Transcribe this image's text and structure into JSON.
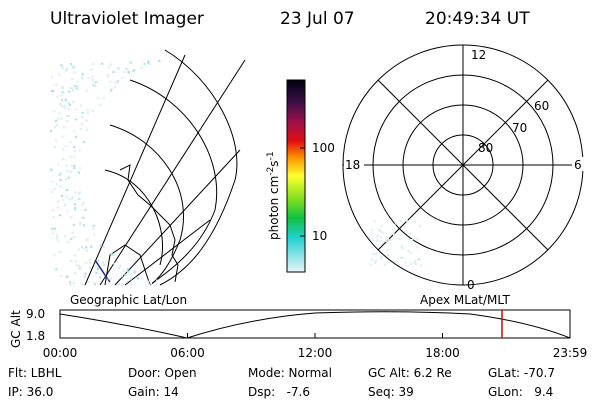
{
  "header": {
    "title": "Ultraviolet Imager",
    "date": "23 Jul 07",
    "time": "20:49:34 UT"
  },
  "colorbar": {
    "unit": [
      "photon cm",
      "-2",
      "s",
      "-1"
    ],
    "ticks": [
      "100",
      "10"
    ]
  },
  "polar": {
    "mlt": [
      "12",
      "6",
      "18",
      "0"
    ],
    "mlat": [
      "80",
      "70",
      "60"
    ]
  },
  "altitude_plot": {
    "left_title": "Geographic Lat/Lon",
    "right_title": "Apex MLat/MLT",
    "ylabel": "GC Alt",
    "yticks": [
      "9.0",
      "1.8"
    ],
    "xticks": [
      "00:00",
      "06:00",
      "12:00",
      "18:00",
      "23:59"
    ]
  },
  "info": [
    [
      "Flt: LBHL",
      "Door: Open",
      "Mode: Normal",
      "GC Alt: 6.2 Re",
      "GLat: -70.7"
    ],
    [
      "IP: 36.0",
      "Gain: 14",
      "Dsp:   -7.6",
      "Seq: 39",
      "GLon:   9.4"
    ]
  ]
}
